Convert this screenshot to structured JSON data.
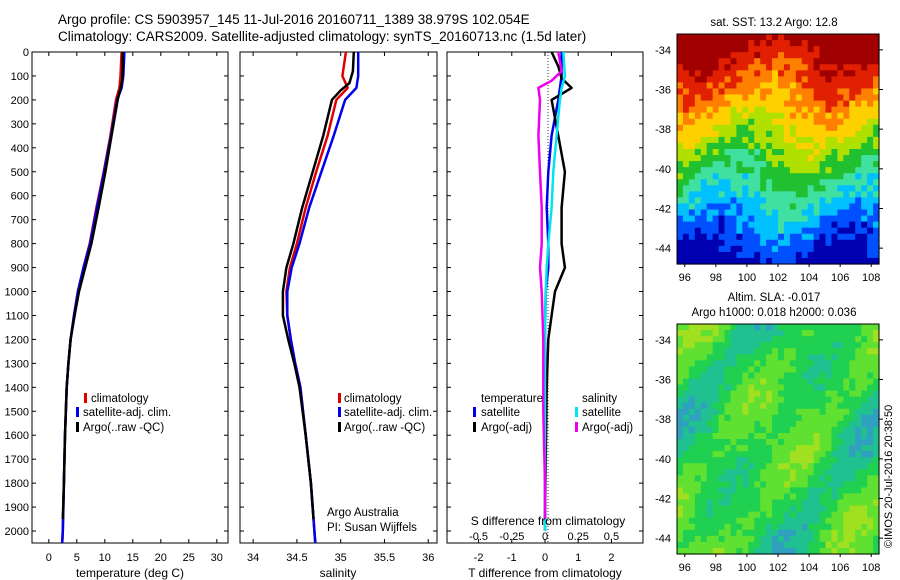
{
  "header": {
    "title_line1": "Argo profile: CS 5903957_145 11-Jul-2016 20160711_1389 38.979S 102.054E",
    "title_line2": "Climatology: CARS2009. Satellite-adjusted climatology: synTS_20160713.nc (1.5d later)"
  },
  "chart_data": [
    {
      "type": "line",
      "id": "temperature",
      "xlabel": "temperature (deg C)",
      "xlim": [
        -3,
        32
      ],
      "ylim": [
        2050,
        0
      ],
      "xticks": [
        0,
        5,
        10,
        15,
        20,
        25,
        30
      ],
      "yticks": [
        0,
        100,
        200,
        300,
        400,
        500,
        600,
        700,
        800,
        900,
        1000,
        1100,
        1200,
        1300,
        1400,
        1500,
        1600,
        1700,
        1800,
        1900,
        2000
      ],
      "legend": [
        "climatology",
        "satellite-adj. clim.",
        "Argo(..raw -QC)"
      ],
      "series": [
        {
          "name": "climatology",
          "color": "#e00000",
          "points": [
            [
              13.0,
              0
            ],
            [
              12.8,
              100
            ],
            [
              12.6,
              150
            ],
            [
              12.0,
              200
            ],
            [
              11.0,
              350
            ],
            [
              9.8,
              500
            ],
            [
              8.5,
              650
            ],
            [
              7.3,
              800
            ],
            [
              6.2,
              900
            ],
            [
              5.2,
              1000
            ],
            [
              4.5,
              1100
            ],
            [
              3.9,
              1200
            ],
            [
              3.5,
              1300
            ],
            [
              3.2,
              1400
            ],
            [
              2.9,
              1600
            ],
            [
              2.7,
              1800
            ],
            [
              2.5,
              2000
            ],
            [
              2.4,
              2050
            ]
          ]
        },
        {
          "name": "satellite-adj. clim.",
          "color": "#0000ee",
          "points": [
            [
              13.5,
              0
            ],
            [
              13.3,
              100
            ],
            [
              13.0,
              150
            ],
            [
              12.2,
              200
            ],
            [
              11.1,
              350
            ],
            [
              9.9,
              500
            ],
            [
              8.6,
              650
            ],
            [
              7.4,
              800
            ],
            [
              6.2,
              900
            ],
            [
              5.2,
              1000
            ],
            [
              4.5,
              1100
            ],
            [
              3.9,
              1200
            ],
            [
              3.5,
              1300
            ],
            [
              3.2,
              1400
            ],
            [
              2.9,
              1600
            ],
            [
              2.7,
              1800
            ],
            [
              2.5,
              2000
            ],
            [
              2.4,
              2050
            ]
          ]
        },
        {
          "name": "Argo(..raw -QC)",
          "color": "#000000",
          "points": [
            [
              13.2,
              0
            ],
            [
              13.2,
              60
            ],
            [
              13.1,
              120
            ],
            [
              12.8,
              150
            ],
            [
              12.3,
              200
            ],
            [
              11.2,
              350
            ],
            [
              10.1,
              500
            ],
            [
              8.9,
              650
            ],
            [
              7.6,
              800
            ],
            [
              6.5,
              900
            ],
            [
              5.4,
              1000
            ],
            [
              4.6,
              1100
            ],
            [
              3.9,
              1200
            ],
            [
              3.5,
              1300
            ],
            [
              3.2,
              1400
            ],
            [
              2.9,
              1600
            ],
            [
              2.7,
              1800
            ],
            [
              2.5,
              1950
            ]
          ]
        }
      ]
    },
    {
      "type": "line",
      "id": "salinity",
      "xlabel": "salinity",
      "xlim": [
        33.85,
        36.1
      ],
      "ylim": [
        2050,
        0
      ],
      "xticks": [
        34,
        34.5,
        35,
        35.5,
        36
      ],
      "legend": [
        "climatology",
        "satellite-adj. clim.",
        "Argo(..raw -QC)"
      ],
      "annotation": [
        "Argo Australia",
        "PI: Susan Wijffels"
      ],
      "series": [
        {
          "name": "climatology",
          "color": "#e00000",
          "points": [
            [
              35.06,
              0
            ],
            [
              35.02,
              100
            ],
            [
              35.08,
              150
            ],
            [
              34.95,
              200
            ],
            [
              34.85,
              350
            ],
            [
              34.72,
              500
            ],
            [
              34.6,
              650
            ],
            [
              34.5,
              800
            ],
            [
              34.42,
              900
            ],
            [
              34.38,
              1000
            ],
            [
              34.39,
              1100
            ],
            [
              34.43,
              1200
            ],
            [
              34.48,
              1300
            ],
            [
              34.54,
              1400
            ],
            [
              34.6,
              1600
            ],
            [
              34.66,
              1800
            ],
            [
              34.7,
              2000
            ],
            [
              34.71,
              2050
            ]
          ]
        },
        {
          "name": "satellite-adj. clim.",
          "color": "#0000ee",
          "points": [
            [
              35.2,
              0
            ],
            [
              35.2,
              100
            ],
            [
              35.18,
              150
            ],
            [
              35.05,
              200
            ],
            [
              34.92,
              350
            ],
            [
              34.78,
              500
            ],
            [
              34.64,
              650
            ],
            [
              34.53,
              800
            ],
            [
              34.44,
              900
            ],
            [
              34.39,
              1000
            ],
            [
              34.39,
              1100
            ],
            [
              34.43,
              1200
            ],
            [
              34.48,
              1300
            ],
            [
              34.54,
              1400
            ],
            [
              34.6,
              1600
            ],
            [
              34.66,
              1800
            ],
            [
              34.7,
              2000
            ],
            [
              34.71,
              2050
            ]
          ]
        },
        {
          "name": "Argo(..raw -QC)",
          "color": "#000000",
          "points": [
            [
              35.15,
              0
            ],
            [
              35.14,
              80
            ],
            [
              35.1,
              130
            ],
            [
              35.0,
              160
            ],
            [
              34.9,
              200
            ],
            [
              34.8,
              350
            ],
            [
              34.68,
              500
            ],
            [
              34.56,
              650
            ],
            [
              34.46,
              800
            ],
            [
              34.38,
              900
            ],
            [
              34.34,
              1000
            ],
            [
              34.34,
              1100
            ],
            [
              34.4,
              1200
            ],
            [
              34.47,
              1300
            ],
            [
              34.53,
              1400
            ],
            [
              34.6,
              1600
            ],
            [
              34.66,
              1800
            ],
            [
              34.69,
              1950
            ]
          ]
        }
      ]
    },
    {
      "type": "line",
      "id": "differences",
      "xlabel": "T difference from climatology",
      "xlabel2": "S difference from climatology",
      "xlim": [
        -2.95,
        2.95
      ],
      "ylim": [
        2050,
        0
      ],
      "xticks": [
        -2,
        -1,
        0,
        1,
        2
      ],
      "xticks_labels": [
        "-2",
        "-1",
        "0",
        "1",
        "2"
      ],
      "xticks_s_labels": [
        "-0.5",
        "-0.25",
        "0",
        "0.25",
        "0.5"
      ],
      "legend_groups": [
        "temperature",
        "salinity"
      ],
      "legend": [
        "satellite",
        "Argo(-adj)",
        "satellite",
        "Argo(-adj)"
      ],
      "series": [
        {
          "name": "T satellite",
          "color": "#0000ee",
          "points": [
            [
              0.5,
              0
            ],
            [
              0.5,
              100
            ],
            [
              0.4,
              200
            ],
            [
              0.2,
              350
            ],
            [
              0.1,
              500
            ],
            [
              0.05,
              650
            ],
            [
              0.1,
              800
            ],
            [
              0.1,
              900
            ],
            [
              0.02,
              1000
            ],
            [
              0.0,
              1200
            ],
            [
              0.0,
              1500
            ],
            [
              0.0,
              2000
            ]
          ]
        },
        {
          "name": "T Argo(-adj)",
          "color": "#000000",
          "points": [
            [
              0.2,
              0
            ],
            [
              0.4,
              60
            ],
            [
              0.5,
              110
            ],
            [
              0.8,
              150
            ],
            [
              0.2,
              200
            ],
            [
              0.4,
              350
            ],
            [
              0.6,
              500
            ],
            [
              0.5,
              650
            ],
            [
              0.5,
              800
            ],
            [
              0.6,
              900
            ],
            [
              0.3,
              1000
            ],
            [
              0.2,
              1100
            ],
            [
              0.1,
              1200
            ],
            [
              0.05,
              1400
            ],
            [
              0.02,
              1700
            ],
            [
              0.0,
              1950
            ]
          ]
        },
        {
          "name": "S satellite",
          "color": "#00e5ee",
          "points": [
            [
              0.55,
              0
            ],
            [
              0.6,
              100
            ],
            [
              0.5,
              150
            ],
            [
              0.45,
              200
            ],
            [
              0.35,
              350
            ],
            [
              0.25,
              500
            ],
            [
              0.2,
              650
            ],
            [
              0.1,
              800
            ],
            [
              0.05,
              900
            ],
            [
              0.02,
              1000
            ],
            [
              0.0,
              1200
            ],
            [
              0.0,
              1500
            ],
            [
              0.0,
              2000
            ]
          ]
        },
        {
          "name": "S Argo(-adj)",
          "color": "#ee00ee",
          "points": [
            [
              0.4,
              0
            ],
            [
              0.5,
              80
            ],
            [
              0.2,
              120
            ],
            [
              -0.2,
              150
            ],
            [
              -0.15,
              200
            ],
            [
              -0.2,
              350
            ],
            [
              -0.15,
              500
            ],
            [
              -0.1,
              650
            ],
            [
              -0.1,
              800
            ],
            [
              -0.15,
              900
            ],
            [
              -0.1,
              1000
            ],
            [
              -0.05,
              1200
            ],
            [
              -0.05,
              1500
            ],
            [
              0.0,
              1800
            ],
            [
              0.0,
              1950
            ]
          ]
        }
      ]
    },
    {
      "type": "heatmap",
      "id": "sst_map",
      "title": "sat. SST: 13.2  Argo: 12.8",
      "xlim": [
        95.5,
        108.5
      ],
      "ylim": [
        -44.8,
        -33.2
      ],
      "xticks": [
        96,
        98,
        100,
        102,
        104,
        106,
        108
      ],
      "yticks": [
        -34,
        -36,
        -38,
        -40,
        -42,
        -44
      ],
      "colormap": [
        "#0000b0",
        "#0050ff",
        "#00c0ff",
        "#40e0a0",
        "#20c030",
        "#b0e000",
        "#ffd000",
        "#ff8000",
        "#e02000",
        "#a00000"
      ]
    },
    {
      "type": "heatmap",
      "id": "sla_map",
      "title_line1": "Altim. SLA: -0.017",
      "title_line2": "Argo h1000: 0.018 h2000: 0.036",
      "xlim": [
        95.5,
        108.5
      ],
      "ylim": [
        -44.8,
        -33.2
      ],
      "xticks": [
        96,
        98,
        100,
        102,
        104,
        106,
        108
      ],
      "yticks": [
        -34,
        -36,
        -38,
        -40,
        -42,
        -44
      ],
      "colormap": [
        "#30a0c0",
        "#20c090",
        "#20d050",
        "#60e030",
        "#a0e020",
        "#f0e000"
      ]
    }
  ],
  "footer": {
    "stamp": "©IMOS 20-Jul-2016 20:38:50"
  }
}
